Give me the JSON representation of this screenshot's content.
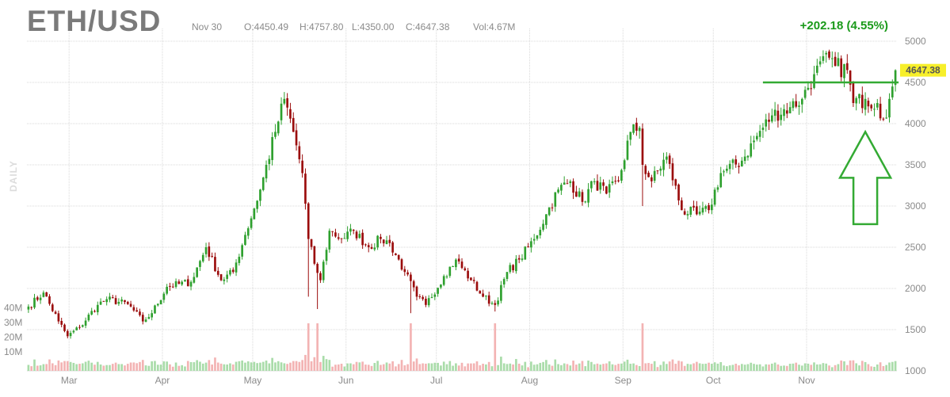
{
  "header": {
    "symbol": "ETH/USD",
    "date": "Nov 30",
    "open": "O:4450.49",
    "high": "H:4757.80",
    "low": "L:4350.00",
    "close": "C:4647.38",
    "volume": "Vol:4.67M",
    "change": "+202.18 (4.55%)",
    "period": "DAILY"
  },
  "colors": {
    "up": "#2ea02e",
    "down": "#9b0c0c",
    "vol_up": "#a9dca9",
    "vol_down": "#f3b3b3",
    "grid": "#d9d9d9",
    "annotation": "#33aa33",
    "last_price_bg": "#f7ef2a"
  },
  "chart_data": {
    "type": "candlestick",
    "x_tick_labels": [
      "Mar",
      "Apr",
      "May",
      "Jun",
      "Jul",
      "Aug",
      "Sep",
      "Oct",
      "Nov"
    ],
    "y_tick_labels": [
      "1000",
      "1500",
      "2000",
      "2500",
      "3000",
      "3500",
      "4000",
      "4500",
      "5000"
    ],
    "volume_tick_labels": [
      "10M",
      "20M",
      "30M",
      "40M"
    ],
    "ylim": [
      1000,
      5000
    ],
    "last_price": 4647.38,
    "last_price_label": "4647.38",
    "start_date": "2021-02-15",
    "end_date": "2021-11-30",
    "close_anchors": [
      [
        "2021-02-15",
        1780
      ],
      [
        "2021-02-20",
        1950
      ],
      [
        "2021-02-25",
        1600
      ],
      [
        "2021-02-28",
        1420
      ],
      [
        "2021-03-04",
        1530
      ],
      [
        "2021-03-10",
        1800
      ],
      [
        "2021-03-13",
        1870
      ],
      [
        "2021-03-20",
        1810
      ],
      [
        "2021-03-25",
        1600
      ],
      [
        "2021-03-28",
        1700
      ],
      [
        "2021-04-02",
        2020
      ],
      [
        "2021-04-10",
        2080
      ],
      [
        "2021-04-15",
        2500
      ],
      [
        "2021-04-20",
        2100
      ],
      [
        "2021-04-24",
        2200
      ],
      [
        "2021-04-28",
        2650
      ],
      [
        "2021-05-03",
        3200
      ],
      [
        "2021-05-08",
        3900
      ],
      [
        "2021-05-11",
        4300
      ],
      [
        "2021-05-14",
        3900
      ],
      [
        "2021-05-17",
        3400
      ],
      [
        "2021-05-19",
        2600
      ],
      [
        "2021-05-21",
        2300
      ],
      [
        "2021-05-23",
        2100
      ],
      [
        "2021-05-26",
        2700
      ],
      [
        "2021-05-30",
        2600
      ],
      [
        "2021-06-03",
        2700
      ],
      [
        "2021-06-08",
        2500
      ],
      [
        "2021-06-12",
        2600
      ],
      [
        "2021-06-15",
        2550
      ],
      [
        "2021-06-20",
        2200
      ],
      [
        "2021-06-24",
        1900
      ],
      [
        "2021-06-27",
        1800
      ],
      [
        "2021-07-03",
        2150
      ],
      [
        "2021-07-07",
        2350
      ],
      [
        "2021-07-12",
        2100
      ],
      [
        "2021-07-16",
        1900
      ],
      [
        "2021-07-20",
        1800
      ],
      [
        "2021-07-24",
        2200
      ],
      [
        "2021-07-28",
        2350
      ],
      [
        "2021-08-02",
        2600
      ],
      [
        "2021-08-06",
        2900
      ],
      [
        "2021-08-10",
        3200
      ],
      [
        "2021-08-14",
        3300
      ],
      [
        "2021-08-18",
        3050
      ],
      [
        "2021-08-22",
        3300
      ],
      [
        "2021-08-26",
        3150
      ],
      [
        "2021-08-30",
        3300
      ],
      [
        "2021-09-03",
        3900
      ],
      [
        "2021-09-06",
        3950
      ],
      [
        "2021-09-07",
        3500
      ],
      [
        "2021-09-10",
        3300
      ],
      [
        "2021-09-15",
        3600
      ],
      [
        "2021-09-20",
        2950
      ],
      [
        "2021-09-25",
        2900
      ],
      [
        "2021-09-29",
        2950
      ],
      [
        "2021-10-03",
        3400
      ],
      [
        "2021-10-10",
        3550
      ],
      [
        "2021-10-15",
        3850
      ],
      [
        "2021-10-20",
        4100
      ],
      [
        "2021-10-26",
        4200
      ],
      [
        "2021-10-30",
        4300
      ],
      [
        "2021-11-03",
        4600
      ],
      [
        "2021-11-08",
        4800
      ],
      [
        "2021-11-10",
        4700
      ],
      [
        "2021-11-14",
        4650
      ],
      [
        "2021-11-16",
        4250
      ],
      [
        "2021-11-20",
        4300
      ],
      [
        "2021-11-24",
        4250
      ],
      [
        "2021-11-26",
        4050
      ],
      [
        "2021-11-28",
        4300
      ],
      [
        "2021-11-29",
        4450
      ],
      [
        "2021-11-30",
        4647
      ]
    ],
    "spikes": [
      [
        "2021-05-19",
        1900
      ],
      [
        "2021-05-22",
        1750
      ],
      [
        "2021-06-22",
        1700
      ],
      [
        "2021-07-20",
        1720
      ],
      [
        "2021-09-07",
        3000
      ]
    ],
    "annotations": [
      {
        "type": "horizontal-line",
        "price": 4500,
        "from": "2021-10-17",
        "to": "2021-11-30"
      },
      {
        "type": "up-arrow",
        "date": "2021-11-20",
        "tip_price": 3900,
        "base_price": 2780
      }
    ]
  }
}
